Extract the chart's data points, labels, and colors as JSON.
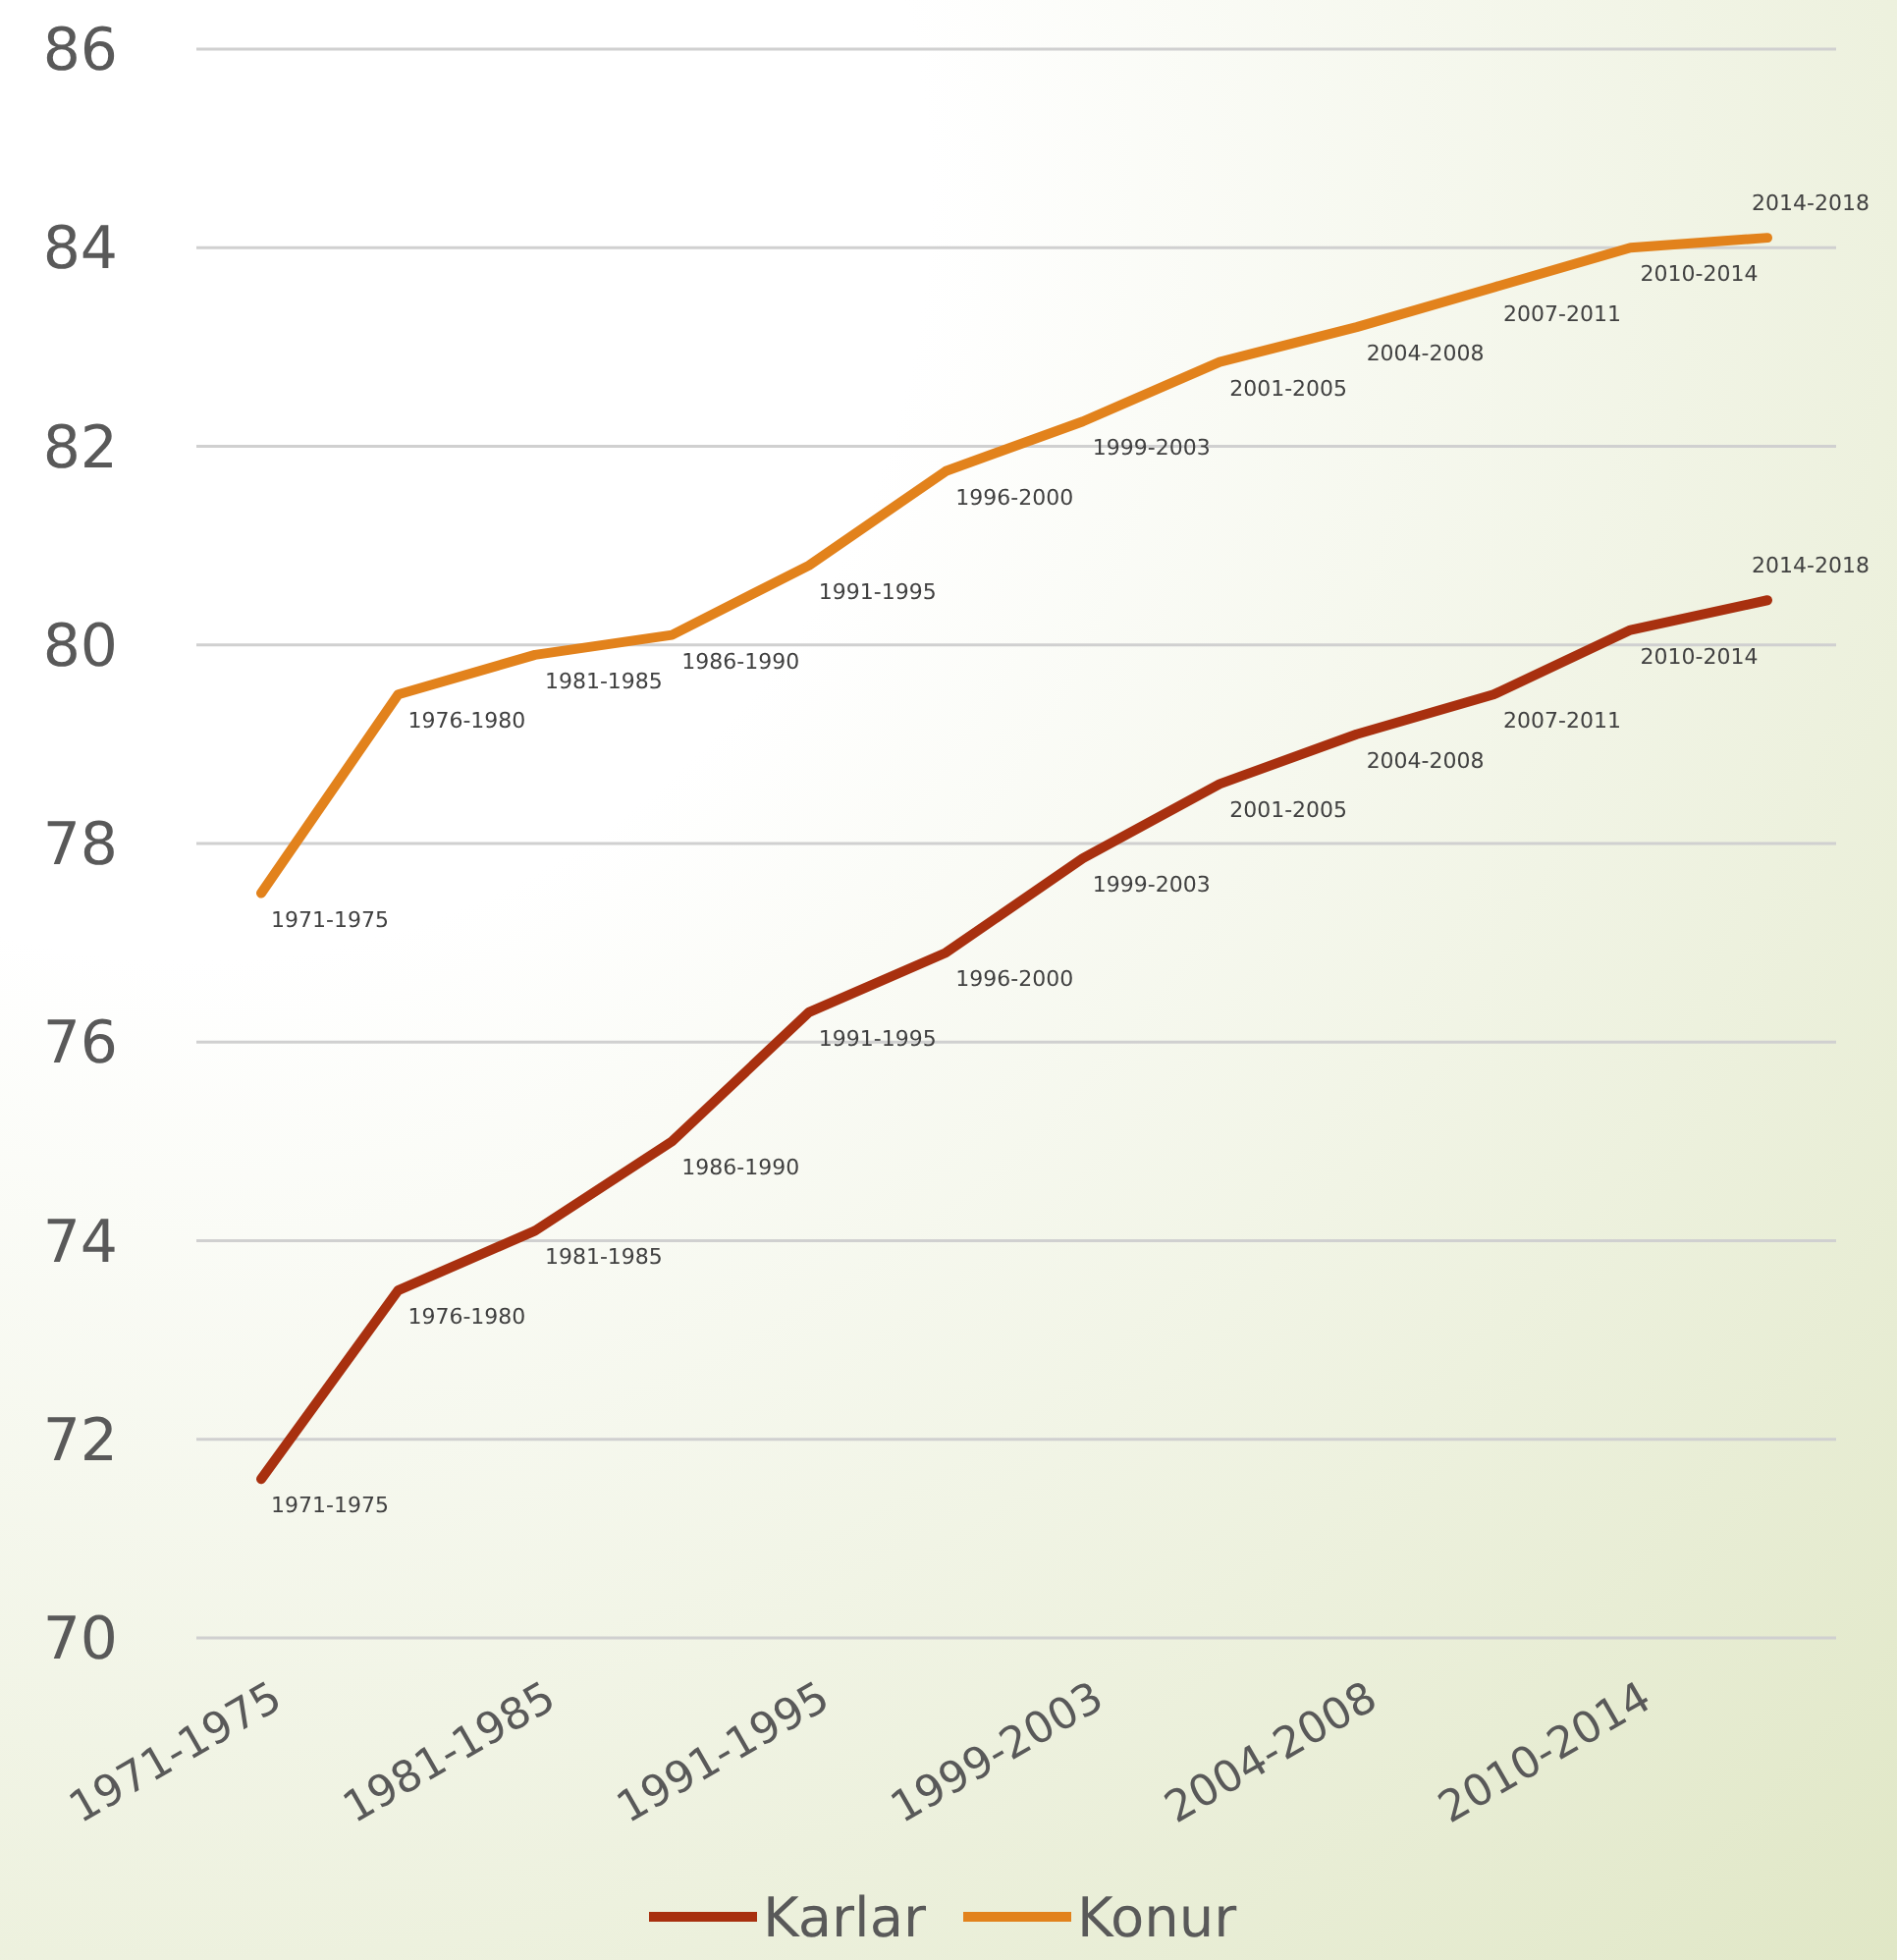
{
  "chart_data": {
    "type": "line",
    "categories": [
      "1971-1975",
      null,
      "1981-1985",
      null,
      "1991-1995",
      null,
      "1999-2003",
      null,
      "2004-2008",
      null,
      "2010-2014",
      null
    ],
    "ylim": [
      70,
      86
    ],
    "yticks": [
      70,
      72,
      74,
      76,
      78,
      80,
      82,
      84,
      86
    ],
    "grid": "y",
    "legend": "bottom",
    "marker": "none",
    "line_style": "solid",
    "series": [
      {
        "name": "Karlar",
        "color": "#a8300f",
        "values": [
          71.6,
          73.5,
          74.1,
          75.0,
          76.3,
          76.9,
          77.85,
          78.6,
          79.1,
          79.5,
          80.15,
          80.45
        ],
        "value_labels": [
          "1971-1975",
          "1976-1980",
          "1981-1985",
          "1986-1990",
          "1991-1995",
          "1996-2000",
          "1999-2003",
          "2001-2005",
          "2004-2008",
          "2007-2011",
          "2010-2014",
          "2014-2018"
        ]
      },
      {
        "name": "Konur",
        "color": "#e2821c",
        "values": [
          77.5,
          79.5,
          79.9,
          80.1,
          80.8,
          81.75,
          82.25,
          82.85,
          83.2,
          83.6,
          84.0,
          84.1
        ],
        "value_labels": [
          "1971-1975",
          "1976-1980",
          "1981-1985",
          "1986-1990",
          "1991-1995",
          "1996-2000",
          "1999-2003",
          "2001-2005",
          "2004-2008",
          "2007-2011",
          "2010-2014",
          "2014-2018"
        ]
      }
    ]
  }
}
